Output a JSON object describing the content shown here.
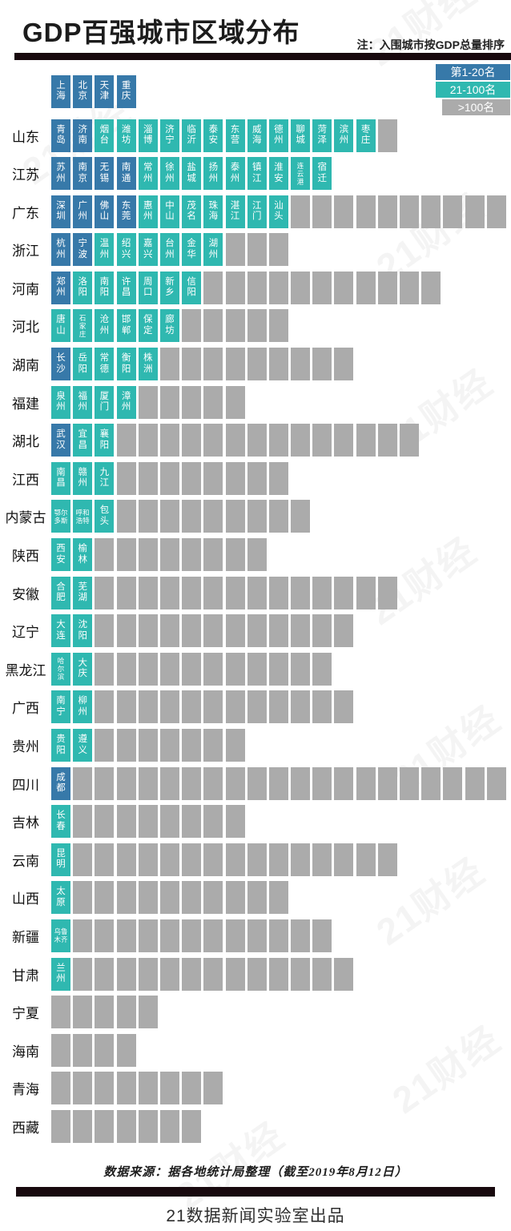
{
  "header": {
    "title": "GDP百强城市区域分布",
    "note": "注：入围城市按GDP总量排序"
  },
  "watermark": "21财经",
  "footer": {
    "source": "数据来源：据各地统计局整理（截至2019年8月12日）",
    "credit": "21数据新闻实验室出品"
  },
  "chart_data": {
    "type": "heatmap",
    "title": "GDP百强城市区域分布",
    "note": "入围城市按GDP总量排序",
    "legend": [
      {
        "label": "第1-20名",
        "tier": "top20",
        "color": "#3779A9"
      },
      {
        "label": "21-100名",
        "tier": "top100",
        "color": "#2FB8B0"
      },
      {
        "label": ">100名",
        "tier": "over100",
        "color": "#ABABAB"
      }
    ],
    "municipalities": [
      {
        "name": "上海",
        "tier": "top20"
      },
      {
        "name": "北京",
        "tier": "top20"
      },
      {
        "name": "天津",
        "tier": "top20"
      },
      {
        "name": "重庆",
        "tier": "top20"
      }
    ],
    "provinces": [
      {
        "name": "山东",
        "cities": [
          {
            "name": "青岛",
            "tier": "top20"
          },
          {
            "name": "济南",
            "tier": "top20"
          },
          {
            "name": "烟台",
            "tier": "top100"
          },
          {
            "name": "潍坊",
            "tier": "top100"
          },
          {
            "name": "淄博",
            "tier": "top100"
          },
          {
            "name": "济宁",
            "tier": "top100"
          },
          {
            "name": "临沂",
            "tier": "top100"
          },
          {
            "name": "泰安",
            "tier": "top100"
          },
          {
            "name": "东营",
            "tier": "top100"
          },
          {
            "name": "威海",
            "tier": "top100"
          },
          {
            "name": "德州",
            "tier": "top100"
          },
          {
            "name": "聊城",
            "tier": "top100"
          },
          {
            "name": "菏泽",
            "tier": "top100"
          },
          {
            "name": "滨州",
            "tier": "top100"
          },
          {
            "name": "枣庄",
            "tier": "top100"
          }
        ],
        "over100_count": 1
      },
      {
        "name": "江苏",
        "cities": [
          {
            "name": "苏州",
            "tier": "top20"
          },
          {
            "name": "南京",
            "tier": "top20"
          },
          {
            "name": "无锡",
            "tier": "top20"
          },
          {
            "name": "南通",
            "tier": "top20"
          },
          {
            "name": "常州",
            "tier": "top100"
          },
          {
            "name": "徐州",
            "tier": "top100"
          },
          {
            "name": "盐城",
            "tier": "top100"
          },
          {
            "name": "扬州",
            "tier": "top100"
          },
          {
            "name": "泰州",
            "tier": "top100"
          },
          {
            "name": "镇江",
            "tier": "top100"
          },
          {
            "name": "淮安",
            "tier": "top100"
          },
          {
            "name": "连云港",
            "tier": "top100"
          },
          {
            "name": "宿迁",
            "tier": "top100"
          }
        ],
        "over100_count": 0
      },
      {
        "name": "广东",
        "cities": [
          {
            "name": "深圳",
            "tier": "top20"
          },
          {
            "name": "广州",
            "tier": "top20"
          },
          {
            "name": "佛山",
            "tier": "top20"
          },
          {
            "name": "东莞",
            "tier": "top20"
          },
          {
            "name": "惠州",
            "tier": "top100"
          },
          {
            "name": "中山",
            "tier": "top100"
          },
          {
            "name": "茂名",
            "tier": "top100"
          },
          {
            "name": "珠海",
            "tier": "top100"
          },
          {
            "name": "湛江",
            "tier": "top100"
          },
          {
            "name": "江门",
            "tier": "top100"
          },
          {
            "name": "汕头",
            "tier": "top100"
          }
        ],
        "over100_count": 10
      },
      {
        "name": "浙江",
        "cities": [
          {
            "name": "杭州",
            "tier": "top20"
          },
          {
            "name": "宁波",
            "tier": "top20"
          },
          {
            "name": "温州",
            "tier": "top100"
          },
          {
            "name": "绍兴",
            "tier": "top100"
          },
          {
            "name": "嘉兴",
            "tier": "top100"
          },
          {
            "name": "台州",
            "tier": "top100"
          },
          {
            "name": "金华",
            "tier": "top100"
          },
          {
            "name": "湖州",
            "tier": "top100"
          }
        ],
        "over100_count": 3
      },
      {
        "name": "河南",
        "cities": [
          {
            "name": "郑州",
            "tier": "top20"
          },
          {
            "name": "洛阳",
            "tier": "top100"
          },
          {
            "name": "南阳",
            "tier": "top100"
          },
          {
            "name": "许昌",
            "tier": "top100"
          },
          {
            "name": "周口",
            "tier": "top100"
          },
          {
            "name": "新乡",
            "tier": "top100"
          },
          {
            "name": "信阳",
            "tier": "top100"
          }
        ],
        "over100_count": 11
      },
      {
        "name": "河北",
        "cities": [
          {
            "name": "唐山",
            "tier": "top100"
          },
          {
            "name": "石家庄",
            "tier": "top100"
          },
          {
            "name": "沧州",
            "tier": "top100"
          },
          {
            "name": "邯郸",
            "tier": "top100"
          },
          {
            "name": "保定",
            "tier": "top100"
          },
          {
            "name": "廊坊",
            "tier": "top100"
          }
        ],
        "over100_count": 5
      },
      {
        "name": "湖南",
        "cities": [
          {
            "name": "长沙",
            "tier": "top20"
          },
          {
            "name": "岳阳",
            "tier": "top100"
          },
          {
            "name": "常德",
            "tier": "top100"
          },
          {
            "name": "衡阳",
            "tier": "top100"
          },
          {
            "name": "株洲",
            "tier": "top100"
          }
        ],
        "over100_count": 9
      },
      {
        "name": "福建",
        "cities": [
          {
            "name": "泉州",
            "tier": "top100"
          },
          {
            "name": "福州",
            "tier": "top100"
          },
          {
            "name": "厦门",
            "tier": "top100"
          },
          {
            "name": "漳州",
            "tier": "top100"
          }
        ],
        "over100_count": 5
      },
      {
        "name": "湖北",
        "cities": [
          {
            "name": "武汉",
            "tier": "top20"
          },
          {
            "name": "宜昌",
            "tier": "top100"
          },
          {
            "name": "襄阳",
            "tier": "top100"
          }
        ],
        "over100_count": 14
      },
      {
        "name": "江西",
        "cities": [
          {
            "name": "南昌",
            "tier": "top100"
          },
          {
            "name": "赣州",
            "tier": "top100"
          },
          {
            "name": "九江",
            "tier": "top100"
          }
        ],
        "over100_count": 8
      },
      {
        "name": "内蒙古",
        "cities": [
          {
            "name": "鄂尔多斯",
            "tier": "top100"
          },
          {
            "name": "呼和浩特",
            "tier": "top100"
          },
          {
            "name": "包头",
            "tier": "top100"
          }
        ],
        "over100_count": 9
      },
      {
        "name": "陕西",
        "cities": [
          {
            "name": "西安",
            "tier": "top100"
          },
          {
            "name": "榆林",
            "tier": "top100"
          }
        ],
        "over100_count": 8
      },
      {
        "name": "安徽",
        "cities": [
          {
            "name": "合肥",
            "tier": "top100"
          },
          {
            "name": "芜湖",
            "tier": "top100"
          }
        ],
        "over100_count": 14
      },
      {
        "name": "辽宁",
        "cities": [
          {
            "name": "大连",
            "tier": "top100"
          },
          {
            "name": "沈阳",
            "tier": "top100"
          }
        ],
        "over100_count": 12
      },
      {
        "name": "黑龙江",
        "cities": [
          {
            "name": "哈尔滨",
            "tier": "top100"
          },
          {
            "name": "大庆",
            "tier": "top100"
          }
        ],
        "over100_count": 11
      },
      {
        "name": "广西",
        "cities": [
          {
            "name": "南宁",
            "tier": "top100"
          },
          {
            "name": "柳州",
            "tier": "top100"
          }
        ],
        "over100_count": 12
      },
      {
        "name": "贵州",
        "cities": [
          {
            "name": "贵阳",
            "tier": "top100"
          },
          {
            "name": "遵义",
            "tier": "top100"
          }
        ],
        "over100_count": 7
      },
      {
        "name": "四川",
        "cities": [
          {
            "name": "成都",
            "tier": "top20"
          }
        ],
        "over100_count": 20
      },
      {
        "name": "吉林",
        "cities": [
          {
            "name": "长春",
            "tier": "top100"
          }
        ],
        "over100_count": 8
      },
      {
        "name": "云南",
        "cities": [
          {
            "name": "昆明",
            "tier": "top100"
          }
        ],
        "over100_count": 15
      },
      {
        "name": "山西",
        "cities": [
          {
            "name": "太原",
            "tier": "top100"
          }
        ],
        "over100_count": 10
      },
      {
        "name": "新疆",
        "cities": [
          {
            "name": "乌鲁木齐",
            "tier": "top100"
          }
        ],
        "over100_count": 12
      },
      {
        "name": "甘肃",
        "cities": [
          {
            "name": "兰州",
            "tier": "top100"
          }
        ],
        "over100_count": 13
      },
      {
        "name": "宁夏",
        "cities": [],
        "over100_count": 5
      },
      {
        "name": "海南",
        "cities": [],
        "over100_count": 4
      },
      {
        "name": "青海",
        "cities": [],
        "over100_count": 8
      },
      {
        "name": "西藏",
        "cities": [],
        "over100_count": 7
      }
    ]
  }
}
